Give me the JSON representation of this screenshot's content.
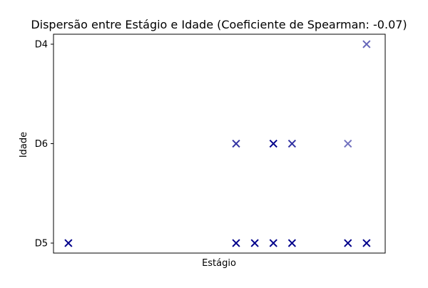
{
  "chart_data": {
    "type": "scatter",
    "title": "Dispersão entre Estágio e Idade (Coeficiente de Spearman: -0.07)",
    "xlabel": "Estágio",
    "ylabel": "Idade",
    "x_tick_labels": [],
    "y_categories": [
      "D5",
      "D6",
      "D4"
    ],
    "xlim": [
      -0.8,
      17.0
    ],
    "marker": "x",
    "marker_color": "#00008b",
    "grid": false,
    "legend": "none",
    "points": [
      {
        "x": 0,
        "y": "D5"
      },
      {
        "x": 9,
        "y": "D5"
      },
      {
        "x": 10,
        "y": "D5"
      },
      {
        "x": 11,
        "y": "D5"
      },
      {
        "x": 12,
        "y": "D5"
      },
      {
        "x": 15,
        "y": "D5"
      },
      {
        "x": 16,
        "y": "D5"
      },
      {
        "x": 9,
        "y": "D6"
      },
      {
        "x": 11,
        "y": "D6"
      },
      {
        "x": 12,
        "y": "D6"
      },
      {
        "x": 15,
        "y": "D6"
      },
      {
        "x": 16,
        "y": "D4"
      }
    ],
    "point_alpha": [
      1,
      1,
      1,
      1,
      1,
      1,
      1,
      0.8,
      1,
      0.8,
      0.55,
      0.6
    ]
  }
}
